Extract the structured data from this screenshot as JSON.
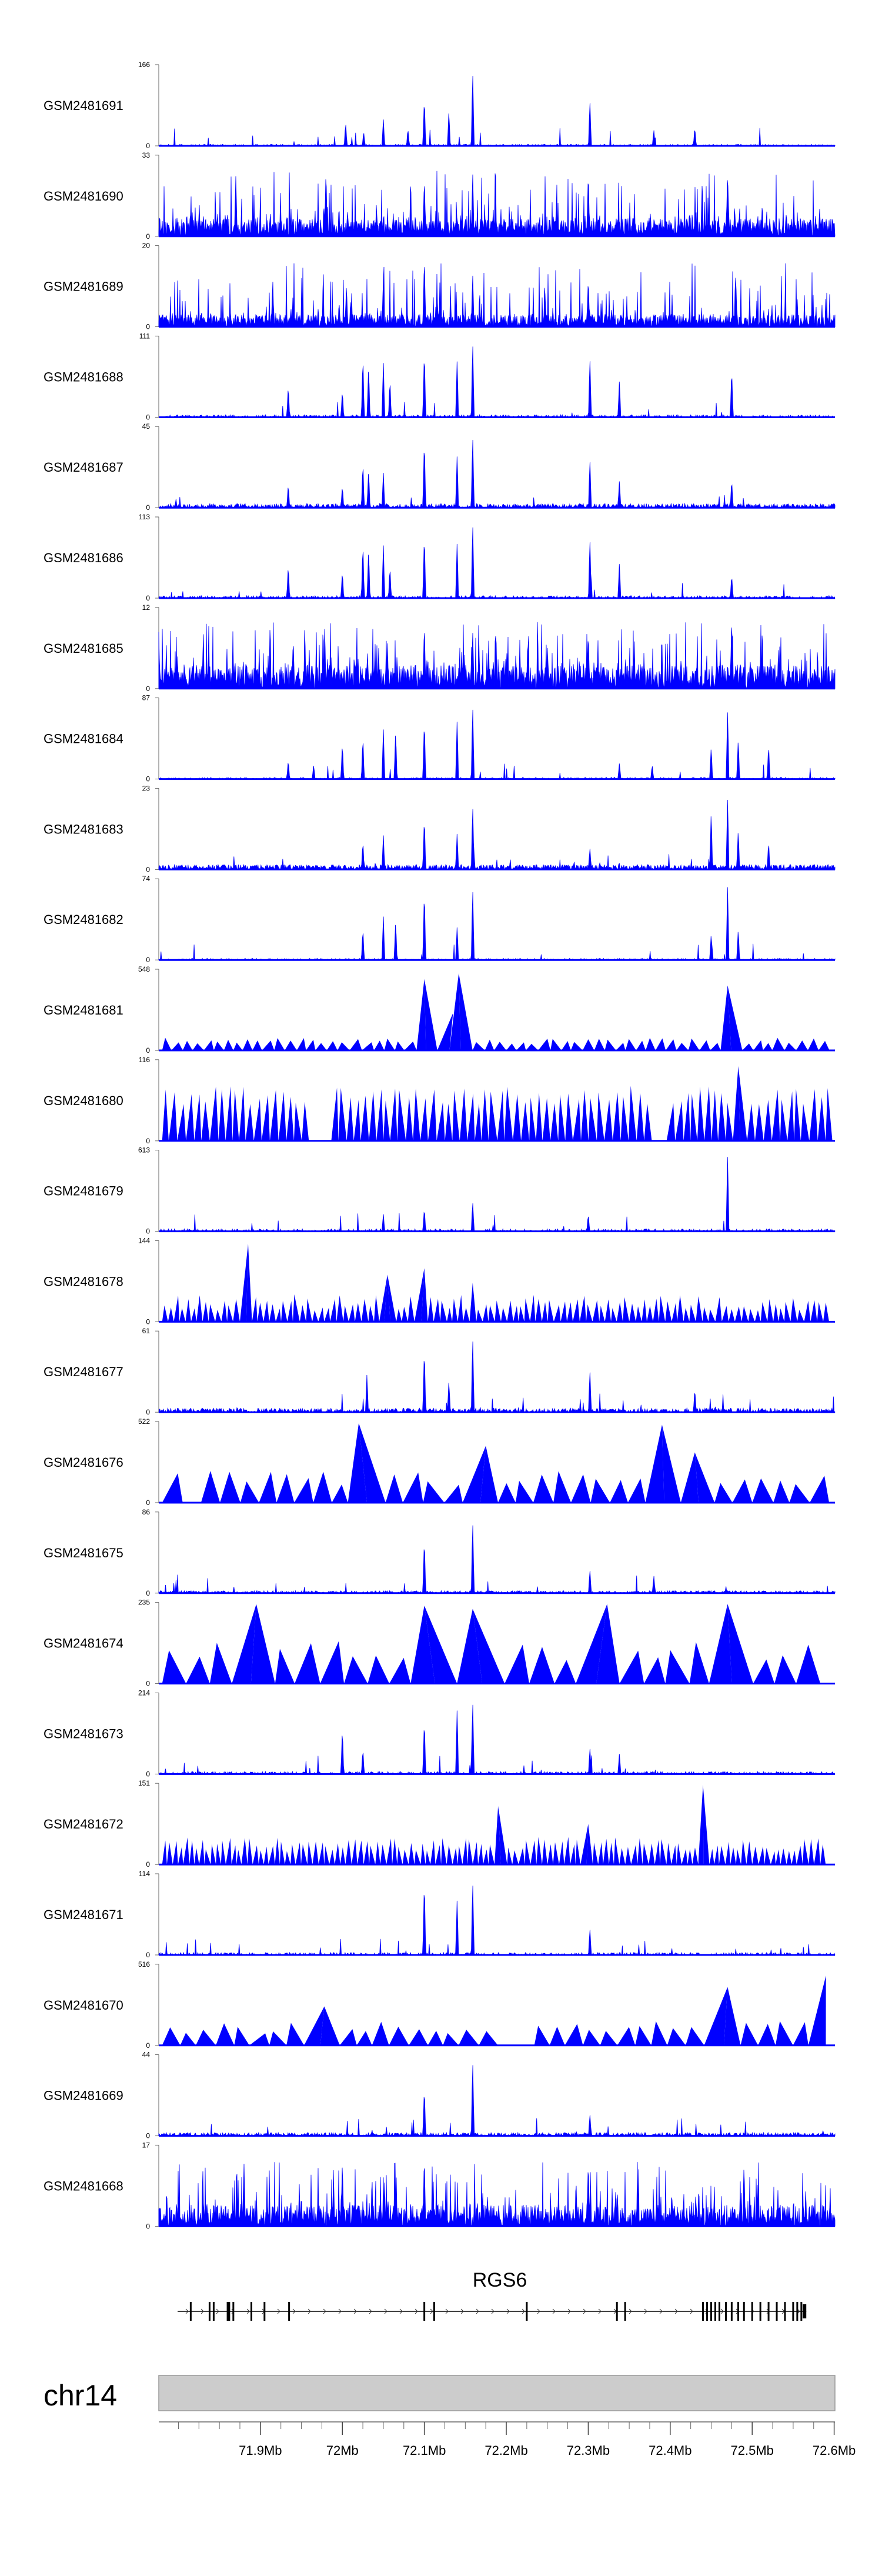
{
  "chart_data": {
    "type": "area",
    "tracks": [
      {
        "name": "GSM2481691",
        "ymax": "166",
        "ymin": "0",
        "vmax": 166,
        "style": "spiky",
        "density": 0.6,
        "base": 0.02,
        "peaks": [
          [
            72.004,
            0.3
          ],
          [
            72.026,
            0.18
          ],
          [
            72.05,
            0.34
          ],
          [
            72.08,
            0.22
          ],
          [
            72.1,
            0.62
          ],
          [
            72.13,
            0.44
          ],
          [
            72.159,
            0.95
          ],
          [
            72.302,
            0.58
          ],
          [
            72.38,
            0.2
          ],
          [
            72.43,
            0.24
          ]
        ]
      },
      {
        "name": "GSM2481690",
        "ymax": "33",
        "ymin": "0",
        "vmax": 33,
        "style": "noise",
        "density": 1.0,
        "base": 0.22,
        "peaks": [
          [
            71.87,
            0.75
          ],
          [
            71.98,
            0.82
          ],
          [
            72.1,
            0.72
          ],
          [
            72.159,
            0.8
          ],
          [
            72.3,
            0.78
          ],
          [
            72.47,
            0.82
          ]
        ]
      },
      {
        "name": "GSM2481689",
        "ymax": "20",
        "ymin": "0",
        "vmax": 20,
        "style": "noise",
        "density": 1.0,
        "base": 0.15,
        "peaks": [
          [
            71.915,
            0.55
          ],
          [
            72.005,
            0.52
          ],
          [
            72.05,
            0.6
          ],
          [
            72.1,
            0.86
          ],
          [
            72.159,
            0.66
          ],
          [
            72.3,
            0.6
          ],
          [
            72.48,
            0.62
          ]
        ]
      },
      {
        "name": "GSM2481688",
        "ymax": "111",
        "ymin": "0",
        "vmax": 111,
        "style": "peaks",
        "density": 0.6,
        "base": 0.03,
        "peaks": [
          [
            71.934,
            0.4
          ],
          [
            72.0,
            0.34
          ],
          [
            72.025,
            0.78
          ],
          [
            72.032,
            0.65
          ],
          [
            72.05,
            0.7
          ],
          [
            72.058,
            0.48
          ],
          [
            72.1,
            0.86
          ],
          [
            72.14,
            0.72
          ],
          [
            72.159,
            0.96
          ],
          [
            72.302,
            0.76
          ],
          [
            72.338,
            0.46
          ],
          [
            72.475,
            0.62
          ]
        ]
      },
      {
        "name": "GSM2481687",
        "ymax": "45",
        "ymin": "0",
        "vmax": 45,
        "style": "peaks",
        "density": 0.8,
        "base": 0.05,
        "peaks": [
          [
            71.934,
            0.3
          ],
          [
            72.0,
            0.28
          ],
          [
            72.025,
            0.58
          ],
          [
            72.032,
            0.48
          ],
          [
            72.05,
            0.45
          ],
          [
            72.1,
            0.88
          ],
          [
            72.14,
            0.66
          ],
          [
            72.159,
            0.92
          ],
          [
            72.302,
            0.62
          ],
          [
            72.338,
            0.34
          ],
          [
            72.475,
            0.36
          ]
        ]
      },
      {
        "name": "GSM2481686",
        "ymax": "113",
        "ymin": "0",
        "vmax": 113,
        "style": "peaks",
        "density": 0.6,
        "base": 0.03,
        "peaks": [
          [
            71.934,
            0.42
          ],
          [
            72.0,
            0.34
          ],
          [
            72.025,
            0.7
          ],
          [
            72.032,
            0.62
          ],
          [
            72.05,
            0.68
          ],
          [
            72.058,
            0.4
          ],
          [
            72.1,
            0.82
          ],
          [
            72.14,
            0.7
          ],
          [
            72.159,
            0.96
          ],
          [
            72.302,
            0.76
          ],
          [
            72.338,
            0.44
          ],
          [
            72.475,
            0.3
          ]
        ]
      },
      {
        "name": "GSM2481685",
        "ymax": "12",
        "ymin": "0",
        "vmax": 12,
        "style": "noise",
        "density": 1.0,
        "base": 0.28,
        "peaks": [
          [
            71.94,
            0.62
          ],
          [
            72.1,
            0.8
          ],
          [
            72.159,
            0.72
          ],
          [
            72.3,
            0.7
          ],
          [
            72.475,
            0.88
          ]
        ]
      },
      {
        "name": "GSM2481684",
        "ymax": "87",
        "ymin": "0",
        "vmax": 87,
        "style": "peaks",
        "density": 0.5,
        "base": 0.02,
        "peaks": [
          [
            71.934,
            0.24
          ],
          [
            71.965,
            0.18
          ],
          [
            72.0,
            0.46
          ],
          [
            72.025,
            0.54
          ],
          [
            72.05,
            0.64
          ],
          [
            72.065,
            0.62
          ],
          [
            72.1,
            0.76
          ],
          [
            72.14,
            0.74
          ],
          [
            72.159,
            0.94
          ],
          [
            72.338,
            0.2
          ],
          [
            72.378,
            0.18
          ],
          [
            72.45,
            0.42
          ],
          [
            72.47,
            0.86
          ],
          [
            72.483,
            0.52
          ],
          [
            72.52,
            0.44
          ]
        ]
      },
      {
        "name": "GSM2481683",
        "ymax": "23",
        "ymin": "0",
        "vmax": 23,
        "style": "peaks",
        "density": 0.9,
        "base": 0.06,
        "peaks": [
          [
            72.025,
            0.36
          ],
          [
            72.05,
            0.44
          ],
          [
            72.1,
            0.68
          ],
          [
            72.14,
            0.46
          ],
          [
            72.159,
            0.82
          ],
          [
            72.302,
            0.28
          ],
          [
            72.45,
            0.76
          ],
          [
            72.47,
            0.9
          ],
          [
            72.483,
            0.52
          ],
          [
            72.52,
            0.36
          ]
        ]
      },
      {
        "name": "GSM2481682",
        "ymax": "74",
        "ymin": "0",
        "vmax": 74,
        "style": "peaks",
        "density": 0.5,
        "base": 0.02,
        "peaks": [
          [
            72.025,
            0.4
          ],
          [
            72.05,
            0.56
          ],
          [
            72.065,
            0.5
          ],
          [
            72.1,
            0.9
          ],
          [
            72.14,
            0.42
          ],
          [
            72.159,
            0.92
          ],
          [
            72.45,
            0.34
          ],
          [
            72.47,
            0.94
          ],
          [
            72.483,
            0.4
          ]
        ]
      },
      {
        "name": "GSM2481681",
        "ymax": "548",
        "ymin": "0",
        "vmax": 548,
        "style": "triangles",
        "n": 62,
        "tmin": 0.08,
        "tmax": 0.16,
        "peaks": [
          [
            72.1,
            0.88
          ],
          [
            72.135,
            0.46
          ],
          [
            72.142,
            0.95
          ],
          [
            72.47,
            0.8
          ]
        ]
      },
      {
        "name": "GSM2481680",
        "ymax": "116",
        "ymin": "0",
        "vmax": 116,
        "style": "triangles",
        "n": 88,
        "tmin": 0.45,
        "tmax": 0.68,
        "gaps": [
          [
            71.96,
            71.985
          ],
          [
            72.38,
            72.395
          ]
        ],
        "peaks": [
          [
            72.483,
            0.92
          ]
        ]
      },
      {
        "name": "GSM2481679",
        "ymax": "613",
        "ymin": "0",
        "vmax": 613,
        "style": "spiky",
        "density": 0.5,
        "base": 0.03,
        "peaks": [
          [
            72.05,
            0.22
          ],
          [
            72.1,
            0.3
          ],
          [
            72.159,
            0.38
          ],
          [
            72.3,
            0.22
          ],
          [
            72.47,
            0.96
          ]
        ]
      },
      {
        "name": "GSM2481678",
        "ymax": "144",
        "ymin": "0",
        "vmax": 144,
        "style": "triangles",
        "n": 110,
        "tmin": 0.14,
        "tmax": 0.34,
        "peaks": [
          [
            71.885,
            0.96
          ],
          [
            72.055,
            0.58
          ],
          [
            72.1,
            0.66
          ],
          [
            72.159,
            0.48
          ]
        ]
      },
      {
        "name": "GSM2481677",
        "ymax": "61",
        "ymin": "0",
        "vmax": 61,
        "style": "spiky",
        "density": 0.8,
        "base": 0.05,
        "peaks": [
          [
            72.03,
            0.48
          ],
          [
            72.1,
            0.82
          ],
          [
            72.13,
            0.4
          ],
          [
            72.159,
            0.96
          ],
          [
            72.302,
            0.54
          ],
          [
            72.43,
            0.3
          ]
        ]
      },
      {
        "name": "GSM2481676",
        "ymax": "522",
        "ymin": "0",
        "vmax": 522,
        "style": "triangles",
        "n": 36,
        "tmin": 0.22,
        "tmax": 0.4,
        "gaps": [
          [
            71.8,
            71.838
          ]
        ],
        "peaks": [
          [
            72.02,
            0.98
          ],
          [
            72.175,
            0.7
          ],
          [
            72.39,
            0.96
          ],
          [
            72.43,
            0.62
          ]
        ]
      },
      {
        "name": "GSM2481675",
        "ymax": "86",
        "ymin": "0",
        "vmax": 86,
        "style": "spiky",
        "density": 0.7,
        "base": 0.03,
        "peaks": [
          [
            72.1,
            0.7
          ],
          [
            72.159,
            0.92
          ],
          [
            72.302,
            0.3
          ],
          [
            72.38,
            0.22
          ]
        ]
      },
      {
        "name": "GSM2481674",
        "ymax": "235",
        "ymin": "0",
        "vmax": 235,
        "style": "triangles",
        "n": 30,
        "tmin": 0.28,
        "tmax": 0.55,
        "peaks": [
          [
            71.895,
            0.98
          ],
          [
            72.1,
            0.96
          ],
          [
            72.159,
            0.92
          ],
          [
            72.323,
            0.98
          ],
          [
            72.47,
            0.98
          ]
        ]
      },
      {
        "name": "GSM2481673",
        "ymax": "214",
        "ymin": "0",
        "vmax": 214,
        "style": "spiky",
        "density": 0.6,
        "base": 0.03,
        "peaks": [
          [
            72.0,
            0.58
          ],
          [
            72.025,
            0.32
          ],
          [
            72.1,
            0.7
          ],
          [
            72.14,
            0.82
          ],
          [
            72.159,
            0.94
          ],
          [
            72.302,
            0.34
          ],
          [
            72.338,
            0.26
          ]
        ]
      },
      {
        "name": "GSM2481672",
        "ymax": "151",
        "ymin": "0",
        "vmax": 151,
        "style": "triangles",
        "n": 120,
        "tmin": 0.16,
        "tmax": 0.34,
        "peaks": [
          [
            72.19,
            0.72
          ],
          [
            72.3,
            0.5
          ],
          [
            72.44,
            0.98
          ]
        ]
      },
      {
        "name": "GSM2481671",
        "ymax": "114",
        "ymin": "0",
        "vmax": 114,
        "style": "spiky",
        "density": 0.6,
        "base": 0.03,
        "peaks": [
          [
            72.1,
            0.96
          ],
          [
            72.14,
            0.7
          ],
          [
            72.159,
            0.94
          ],
          [
            72.302,
            0.34
          ]
        ]
      },
      {
        "name": "GSM2481670",
        "ymax": "516",
        "ymin": "0",
        "vmax": 516,
        "style": "triangles",
        "n": 38,
        "tmin": 0.14,
        "tmax": 0.3,
        "gaps": [
          [
            72.2,
            72.24
          ]
        ],
        "peaks": [
          [
            71.978,
            0.48
          ],
          [
            72.47,
            0.72
          ],
          [
            72.59,
            0.86
          ]
        ]
      },
      {
        "name": "GSM2481669",
        "ymax": "44",
        "ymin": "0",
        "vmax": 44,
        "style": "spiky",
        "density": 0.8,
        "base": 0.04,
        "peaks": [
          [
            72.1,
            0.62
          ],
          [
            72.159,
            0.96
          ],
          [
            72.302,
            0.28
          ]
        ]
      },
      {
        "name": "GSM2481668",
        "ymax": "17",
        "ymin": "0",
        "vmax": 17,
        "style": "noise",
        "density": 1.0,
        "base": 0.26,
        "peaks": [
          [
            71.88,
            0.78
          ],
          [
            72.0,
            0.8
          ],
          [
            72.1,
            0.82
          ],
          [
            72.3,
            0.8
          ],
          [
            72.49,
            0.78
          ]
        ]
      }
    ],
    "gene": {
      "name": "RGS6",
      "start": 71.799,
      "end": 72.566,
      "exons": [
        71.815,
        71.838,
        71.843,
        71.86,
        71.862,
        71.867,
        71.889,
        71.905,
        71.935,
        72.1,
        72.112,
        72.225,
        72.335,
        72.345,
        72.44,
        72.445,
        72.45,
        72.455,
        72.46,
        72.468,
        72.475,
        72.483,
        72.49,
        72.5,
        72.51,
        72.52,
        72.53,
        72.54,
        72.55,
        72.555,
        72.56
      ]
    },
    "chromosome": "chr14",
    "xaxis": {
      "min": 71.776,
      "max": 72.601,
      "unit": "Mb",
      "ticks": [
        71.9,
        72.0,
        72.1,
        72.2,
        72.3,
        72.4,
        72.5,
        72.6
      ],
      "tick_labels": [
        "71.9Mb",
        "72Mb",
        "72.1Mb",
        "72.2Mb",
        "72.3Mb",
        "72.4Mb",
        "72.5Mb",
        "72.6Mb"
      ],
      "minor_step": 0.025
    },
    "color": "#0000ff"
  }
}
